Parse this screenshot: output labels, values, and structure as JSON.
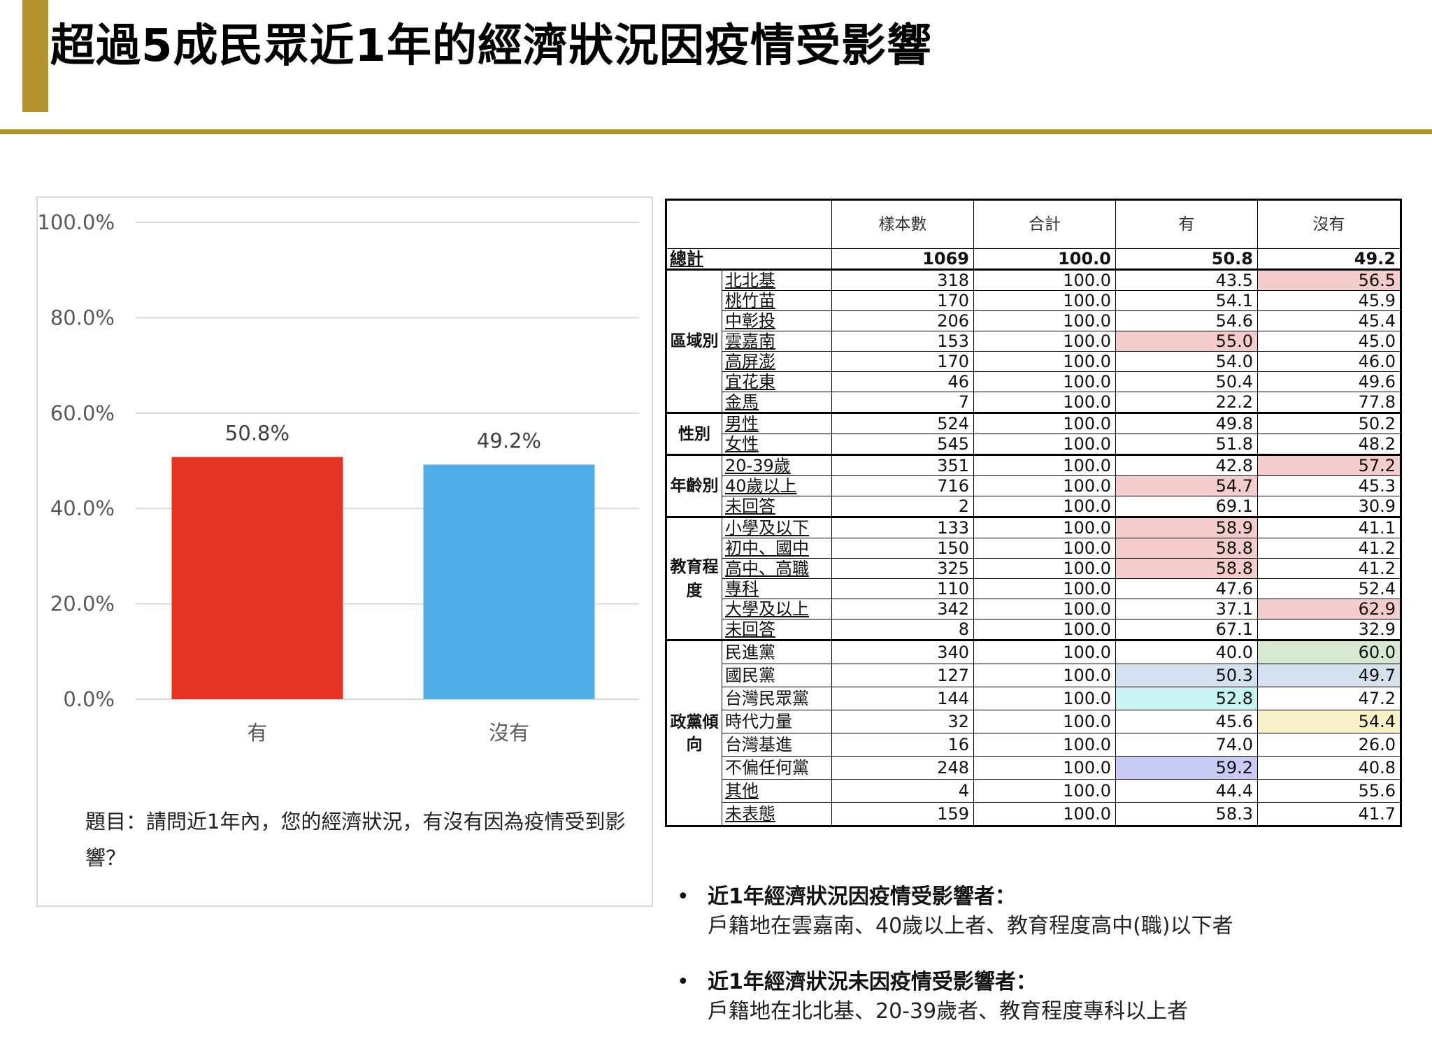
{
  "title": "超過5成民眾近1年的經濟狀況因疫情受影響",
  "colors": {
    "accent": "#B3912B",
    "bar_yes": "#E63323",
    "bar_no": "#4FAEE8",
    "hl_red": "#F5CCCC",
    "hl_green": "#D8E8D0",
    "hl_blue": "#D3E2EE",
    "hl_cyan": "#C8F4F4",
    "hl_yellow": "#FBF1C8",
    "hl_purple": "#C9CBF5"
  },
  "chart_data": {
    "type": "bar",
    "categories": [
      "有",
      "沒有"
    ],
    "values": [
      50.8,
      49.2
    ],
    "data_labels": [
      "50.8%",
      "49.2%"
    ],
    "ylim": [
      0,
      100
    ],
    "yticks": [
      "0.0%",
      "20.0%",
      "40.0%",
      "60.0%",
      "80.0%",
      "100.0%"
    ],
    "grid": true
  },
  "question": "題目：請問近1年內，您的經濟狀況，有沒有因為疫情受到影響？",
  "table": {
    "headers": [
      "樣本數",
      "合計",
      "有",
      "沒有"
    ],
    "total": {
      "label": "總計",
      "cells": [
        "1069",
        "100.0",
        "50.8",
        "49.2"
      ]
    },
    "groups": [
      {
        "label": "區域別",
        "rows": [
          {
            "label": "北北基",
            "cells": [
              "318",
              "100.0",
              "43.5",
              "56.5"
            ],
            "hl": [
              null,
              null,
              null,
              "red"
            ]
          },
          {
            "label": "桃竹苗",
            "cells": [
              "170",
              "100.0",
              "54.1",
              "45.9"
            ],
            "hl": [
              null,
              null,
              null,
              null
            ]
          },
          {
            "label": "中彰投",
            "cells": [
              "206",
              "100.0",
              "54.6",
              "45.4"
            ],
            "hl": [
              null,
              null,
              null,
              null
            ]
          },
          {
            "label": "雲嘉南",
            "cells": [
              "153",
              "100.0",
              "55.0",
              "45.0"
            ],
            "hl": [
              null,
              null,
              "red",
              null
            ]
          },
          {
            "label": "高屏澎",
            "cells": [
              "170",
              "100.0",
              "54.0",
              "46.0"
            ],
            "hl": [
              null,
              null,
              null,
              null
            ]
          },
          {
            "label": "宜花東",
            "cells": [
              "46",
              "100.0",
              "50.4",
              "49.6"
            ],
            "hl": [
              null,
              null,
              null,
              null
            ]
          },
          {
            "label": "金馬",
            "cells": [
              "7",
              "100.0",
              "22.2",
              "77.8"
            ],
            "hl": [
              null,
              null,
              null,
              null
            ]
          }
        ]
      },
      {
        "label": "性別",
        "rows": [
          {
            "label": "男性",
            "cells": [
              "524",
              "100.0",
              "49.8",
              "50.2"
            ],
            "hl": [
              null,
              null,
              null,
              null
            ]
          },
          {
            "label": "女性",
            "cells": [
              "545",
              "100.0",
              "51.8",
              "48.2"
            ],
            "hl": [
              null,
              null,
              null,
              null
            ]
          }
        ]
      },
      {
        "label": "年齡別",
        "rows": [
          {
            "label": "20-39歲",
            "cells": [
              "351",
              "100.0",
              "42.8",
              "57.2"
            ],
            "hl": [
              null,
              null,
              null,
              "red"
            ]
          },
          {
            "label": "40歲以上",
            "cells": [
              "716",
              "100.0",
              "54.7",
              "45.3"
            ],
            "hl": [
              null,
              null,
              "red",
              null
            ]
          },
          {
            "label": "未回答",
            "cells": [
              "2",
              "100.0",
              "69.1",
              "30.9"
            ],
            "hl": [
              null,
              null,
              null,
              null
            ]
          }
        ]
      },
      {
        "label": "教育程度",
        "rows": [
          {
            "label": "小學及以下",
            "cells": [
              "133",
              "100.0",
              "58.9",
              "41.1"
            ],
            "hl": [
              null,
              null,
              "red",
              null
            ]
          },
          {
            "label": "初中、國中",
            "cells": [
              "150",
              "100.0",
              "58.8",
              "41.2"
            ],
            "hl": [
              null,
              null,
              "red",
              null
            ]
          },
          {
            "label": "高中、高職",
            "cells": [
              "325",
              "100.0",
              "58.8",
              "41.2"
            ],
            "hl": [
              null,
              null,
              "red",
              null
            ]
          },
          {
            "label": "專科",
            "cells": [
              "110",
              "100.0",
              "47.6",
              "52.4"
            ],
            "hl": [
              null,
              null,
              null,
              null
            ]
          },
          {
            "label": "大學及以上",
            "cells": [
              "342",
              "100.0",
              "37.1",
              "62.9"
            ],
            "hl": [
              null,
              null,
              null,
              "red"
            ]
          },
          {
            "label": "未回答",
            "cells": [
              "8",
              "100.0",
              "67.1",
              "32.9"
            ],
            "hl": [
              null,
              null,
              null,
              null
            ]
          }
        ]
      },
      {
        "label": "政黨傾向",
        "rows": [
          {
            "label": "民進黨",
            "cells": [
              "340",
              "100.0",
              "40.0",
              "60.0"
            ],
            "hl": [
              null,
              null,
              null,
              "green"
            ]
          },
          {
            "label": "國民黨",
            "cells": [
              "127",
              "100.0",
              "50.3",
              "49.7"
            ],
            "hl": [
              null,
              null,
              "blue",
              "blue"
            ]
          },
          {
            "label": "台灣民眾黨",
            "cells": [
              "144",
              "100.0",
              "52.8",
              "47.2"
            ],
            "hl": [
              null,
              null,
              "cyan",
              null
            ]
          },
          {
            "label": "時代力量",
            "cells": [
              "32",
              "100.0",
              "45.6",
              "54.4"
            ],
            "hl": [
              null,
              null,
              null,
              "yellow"
            ]
          },
          {
            "label": "台灣基進",
            "cells": [
              "16",
              "100.0",
              "74.0",
              "26.0"
            ],
            "hl": [
              null,
              null,
              null,
              null
            ]
          },
          {
            "label": "不偏任何黨",
            "cells": [
              "248",
              "100.0",
              "59.2",
              "40.8"
            ],
            "hl": [
              null,
              null,
              "purple",
              null
            ]
          },
          {
            "label": "其他",
            "cells": [
              "4",
              "100.0",
              "44.4",
              "55.6"
            ],
            "hl": [
              null,
              null,
              null,
              null
            ]
          },
          {
            "label": "未表態",
            "cells": [
              "159",
              "100.0",
              "58.3",
              "41.7"
            ],
            "hl": [
              null,
              null,
              null,
              null
            ]
          }
        ]
      }
    ]
  },
  "notes": [
    {
      "heading": "近1年經濟狀況因疫情受影響者：",
      "body": "戶籍地在雲嘉南、40歲以上者、教育程度高中(職)以下者"
    },
    {
      "heading": "近1年經濟狀況未因疫情受影響者：",
      "body": "戶籍地在北北基、20-39歲者、教育程度專科以上者"
    }
  ]
}
